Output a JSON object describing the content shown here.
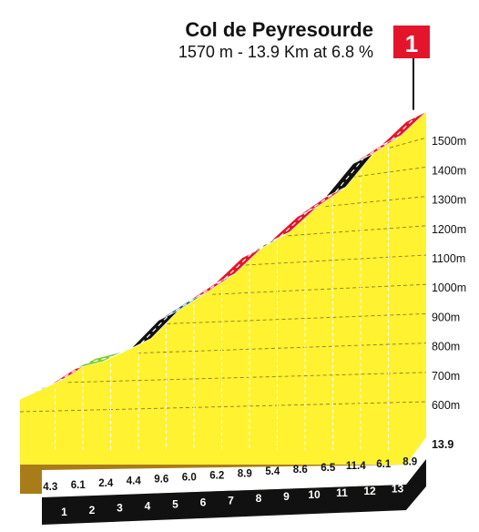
{
  "header": {
    "title": "Col de Peyresourde",
    "subtitle": "1570 m - 13.9 Km at 6.8 %"
  },
  "category_badge": {
    "label": "1",
    "color": "#e4152b"
  },
  "chart_data": {
    "type": "area",
    "title": "Col de Peyresourde",
    "subtitle": "1570 m - 13.9 Km at 6.8 %",
    "xlabel": "",
    "ylabel": "",
    "x_unit": "km",
    "y_unit": "m",
    "ylim": [
      500,
      1570
    ],
    "grid": true,
    "start_altitude": 624,
    "summit_altitude": 1570,
    "total_distance_km": 13.9,
    "average_gradient_pct": 6.8,
    "y_ticks": [
      "600m",
      "700m",
      "800m",
      "900m",
      "1000m",
      "1100m",
      "1200m",
      "1300m",
      "1400m",
      "1500m"
    ],
    "km_labels": [
      "1",
      "2",
      "3",
      "4",
      "5",
      "6",
      "7",
      "8",
      "9",
      "10",
      "11",
      "12",
      "13"
    ],
    "end_label": "13.9",
    "segments": [
      {
        "km": 1,
        "gradient": "4.3",
        "length": 1.0,
        "color": "#1c5a94"
      },
      {
        "km": 2,
        "gradient": "6.1",
        "length": 1.0,
        "color": "#e4152b"
      },
      {
        "km": 3,
        "gradient": "2.4",
        "length": 1.0,
        "color": "#7bcf2e"
      },
      {
        "km": 4,
        "gradient": "4.4",
        "length": 1.0,
        "color": "#1c5a94"
      },
      {
        "km": 5,
        "gradient": "9.6",
        "length": 1.0,
        "color": "#111111"
      },
      {
        "km": 6,
        "gradient": "6.0",
        "length": 1.0,
        "color": "#1c5a94"
      },
      {
        "km": 7,
        "gradient": "6.2",
        "length": 1.0,
        "color": "#e4152b"
      },
      {
        "km": 8,
        "gradient": "8.9",
        "length": 1.0,
        "color": "#e4152b"
      },
      {
        "km": 9,
        "gradient": "5.4",
        "length": 1.0,
        "color": "#1c5a94"
      },
      {
        "km": 10,
        "gradient": "8.6",
        "length": 1.0,
        "color": "#e4152b"
      },
      {
        "km": 11,
        "gradient": "6.5",
        "length": 1.0,
        "color": "#e4152b"
      },
      {
        "km": 12,
        "gradient": "11.4",
        "length": 1.0,
        "color": "#111111"
      },
      {
        "km": 13,
        "gradient": "6.1",
        "length": 1.0,
        "color": "#e4152b"
      },
      {
        "km": 13.9,
        "gradient": "8.9",
        "length": 0.9,
        "color": "#e4152b"
      }
    ]
  },
  "colors": {
    "fill": "#fff230",
    "ground_front": "#111111",
    "ground_side": "#a87c18",
    "grid": "#8a7f25",
    "gradient_blue": "#1c5a94",
    "gradient_red": "#e4152b",
    "gradient_green": "#7bcf2e",
    "gradient_black": "#111111"
  }
}
